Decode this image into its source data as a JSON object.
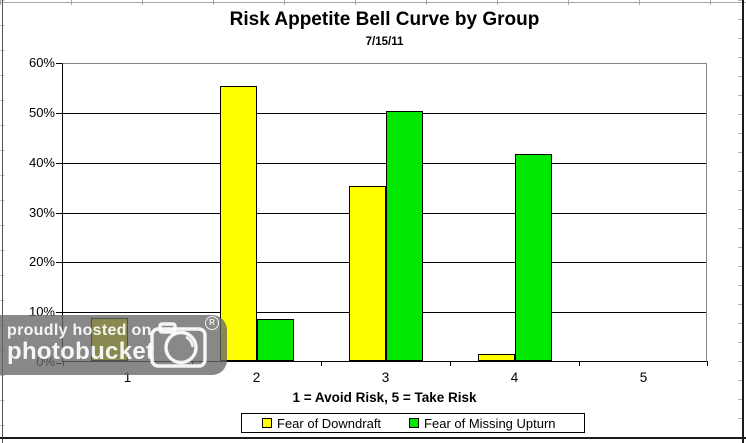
{
  "chart_data": {
    "type": "bar",
    "title": "Risk Appetite Bell Curve by Group",
    "subtitle": "7/15/11",
    "xlabel": "1 = Avoid Risk, 5 = Take Risk",
    "ylabel": "",
    "categories": [
      "1",
      "2",
      "3",
      "4",
      "5"
    ],
    "series": [
      {
        "name": "Fear of Downdraft",
        "color": "#FFFF00",
        "values": [
          8.6,
          55.2,
          35.1,
          1.4,
          0
        ]
      },
      {
        "name": "Fear of Missing Upturn",
        "color": "#00E800",
        "values": [
          0,
          8.4,
          50.2,
          41.5,
          0
        ]
      }
    ],
    "ylim": [
      0,
      60
    ],
    "ytick_step": 10,
    "ytick_labels": [
      "0%",
      "10%",
      "20%",
      "30%",
      "40%",
      "50%",
      "60%"
    ],
    "grid": true,
    "gridline_color": "#000000",
    "plot_border_color": "#848484",
    "legend_position": "bottom"
  },
  "watermark": {
    "line1": "proudly hosted on",
    "line2": "photobucket",
    "registered": "R"
  }
}
